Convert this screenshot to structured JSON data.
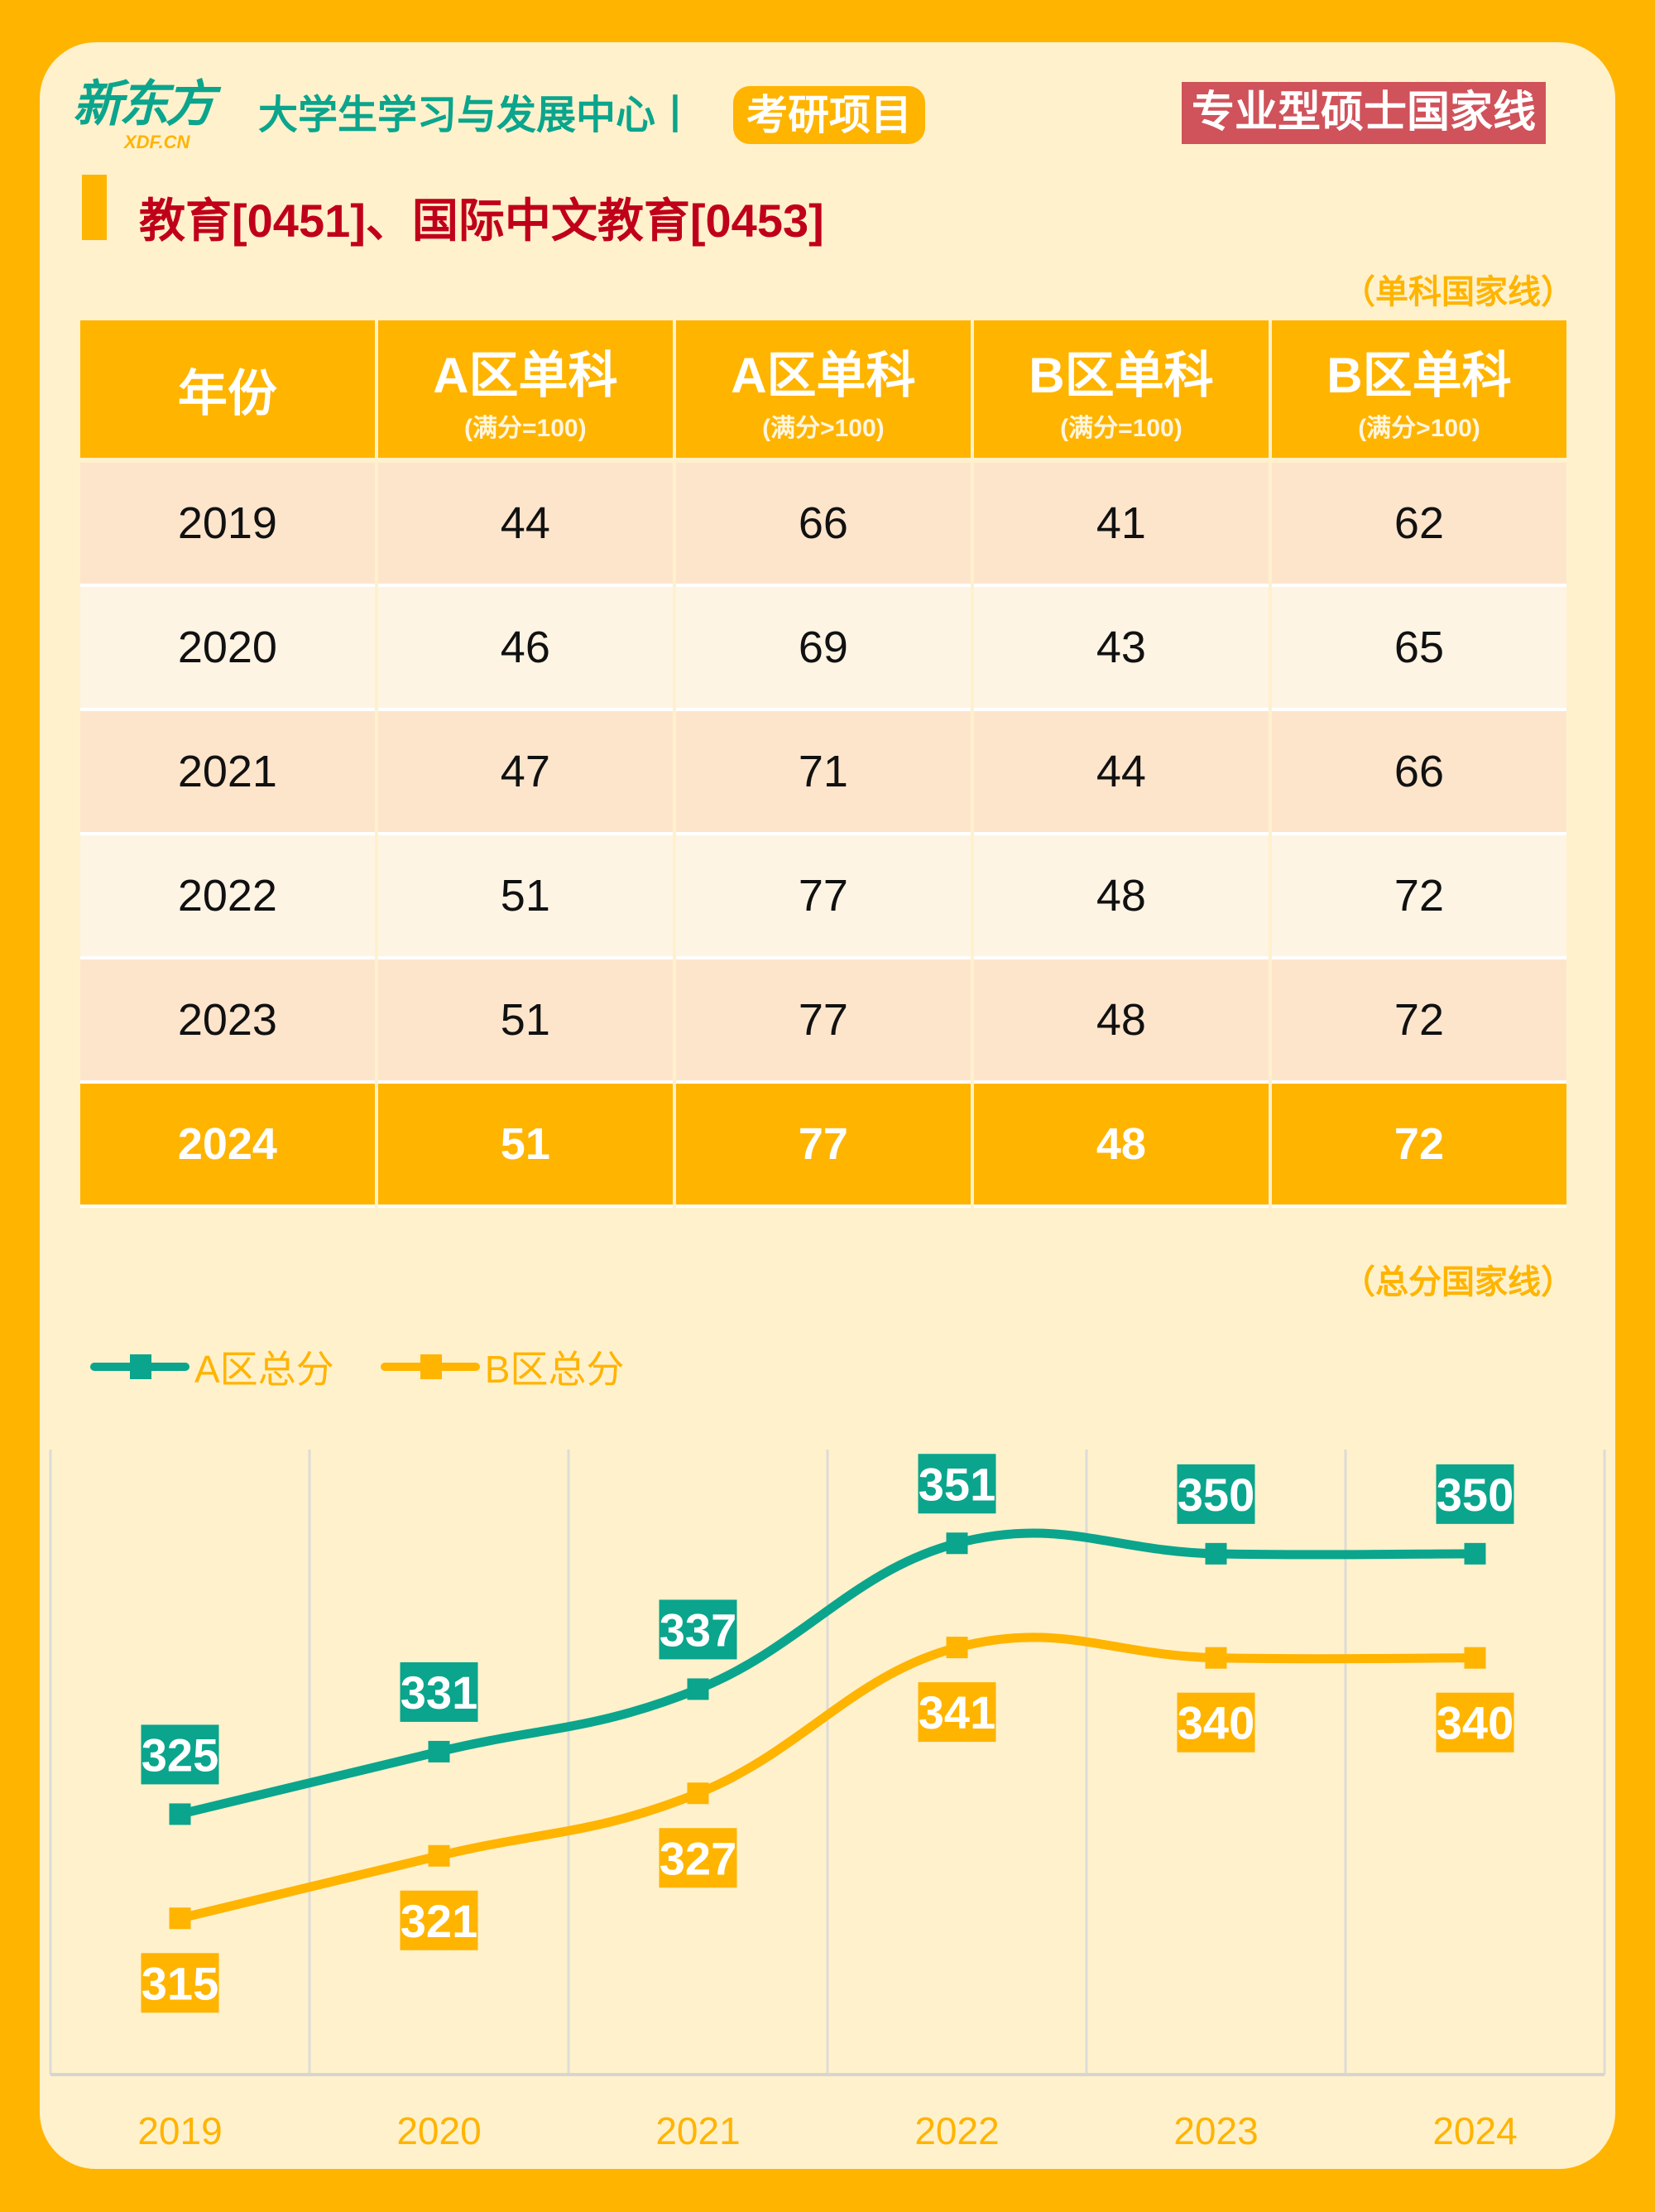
{
  "header": {
    "logo_cn": "新东方",
    "logo_en": "XDF.CN",
    "org": "大学生学习与发展中心丨",
    "project": "考研项目",
    "badge": "专业型硕士国家线"
  },
  "title": "教育[0451]、国际中文教育[0453]",
  "table": {
    "note": "（单科国家线）",
    "headers": [
      {
        "h": "年份",
        "s": ""
      },
      {
        "h": "A区单科",
        "s": "(满分=100)"
      },
      {
        "h": "A区单科",
        "s": "(满分>100)"
      },
      {
        "h": "B区单科",
        "s": "(满分=100)"
      },
      {
        "h": "B区单科",
        "s": "(满分>100)"
      }
    ],
    "rows": [
      [
        "2019",
        "44",
        "66",
        "41",
        "62"
      ],
      [
        "2020",
        "46",
        "69",
        "43",
        "65"
      ],
      [
        "2021",
        "47",
        "71",
        "44",
        "66"
      ],
      [
        "2022",
        "51",
        "77",
        "48",
        "72"
      ],
      [
        "2023",
        "51",
        "77",
        "48",
        "72"
      ],
      [
        "2024",
        "51",
        "77",
        "48",
        "72"
      ]
    ]
  },
  "colors": {
    "teal": "#0aa58c",
    "orange": "#ffb400",
    "red": "#d0525a"
  },
  "chart_data": {
    "type": "line",
    "note": "（总分国家线）",
    "categories": [
      "2019",
      "2020",
      "2021",
      "2022",
      "2023",
      "2024"
    ],
    "series": [
      {
        "name": "A区总分",
        "values": [
          325,
          331,
          337,
          351,
          350,
          350
        ],
        "color": "#0aa58c"
      },
      {
        "name": "B区总分",
        "values": [
          315,
          321,
          327,
          341,
          340,
          340
        ],
        "color": "#ffb400"
      }
    ],
    "ylim": [
      300,
      360
    ],
    "grid": "vertical",
    "legend": "top-left",
    "smooth": true,
    "data_labels": true
  }
}
